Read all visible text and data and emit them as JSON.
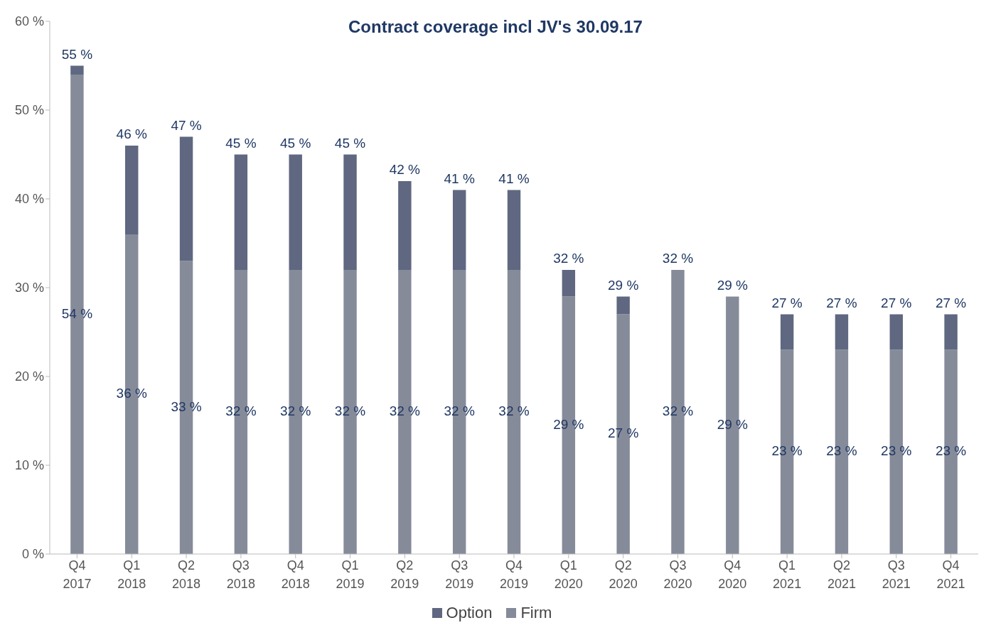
{
  "chart_data": {
    "type": "bar",
    "title": "Contract coverage incl JV's 30.09.17",
    "stacked": true,
    "categories": [
      "Q4 2017",
      "Q1 2018",
      "Q2 2018",
      "Q3 2018",
      "Q4 2018",
      "Q1 2019",
      "Q2 2019",
      "Q3 2019",
      "Q4 2019",
      "Q1 2020",
      "Q2 2020",
      "Q3 2020",
      "Q4 2020",
      "Q1 2021",
      "Q2 2021",
      "Q3 2021",
      "Q4 2021"
    ],
    "series": [
      {
        "name": "Firm",
        "color": "#868b9a",
        "values": [
          54,
          36,
          33,
          32,
          32,
          32,
          32,
          32,
          32,
          29,
          27,
          32,
          29,
          23,
          23,
          23,
          23
        ],
        "value_labels": [
          "54 %",
          "36 %",
          "33 %",
          "32 %",
          "32 %",
          "32 %",
          "32 %",
          "32 %",
          "32 %",
          "29 %",
          "27 %",
          "32 %",
          "29 %",
          "23 %",
          "23 %",
          "23 %",
          "23 %"
        ]
      },
      {
        "name": "Option",
        "color": "#5f6880",
        "values": [
          1,
          10,
          14,
          13,
          13,
          13,
          10,
          9,
          9,
          3,
          2,
          0,
          0,
          4,
          4,
          4,
          4
        ]
      }
    ],
    "totals": [
      "55 %",
      "46 %",
      "47 %",
      "45 %",
      "45 %",
      "45 %",
      "42 %",
      "41 %",
      "41 %",
      "32 %",
      "29 %",
      "32 %",
      "29 %",
      "27 %",
      "27 %",
      "27 %",
      "27 %"
    ],
    "ylim": [
      0,
      60
    ],
    "yticks": [
      {
        "value": 0,
        "label": "0 %"
      },
      {
        "value": 10,
        "label": "10 %"
      },
      {
        "value": 20,
        "label": "20 %"
      },
      {
        "value": 30,
        "label": "30 %"
      },
      {
        "value": 40,
        "label": "40 %"
      },
      {
        "value": 50,
        "label": "50 %"
      },
      {
        "value": 60,
        "label": "60 %"
      }
    ],
    "grid": false,
    "legend": "bottom"
  }
}
